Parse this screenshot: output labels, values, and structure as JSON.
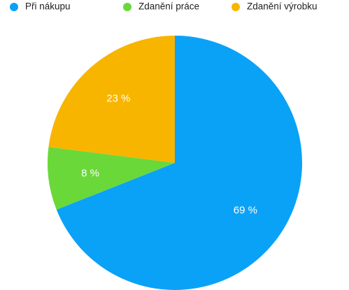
{
  "chart_data": {
    "type": "pie",
    "categories": [
      "Při nákupu",
      "Zdanění práce",
      "Zdanění výrobku"
    ],
    "values": [
      69,
      8,
      23
    ],
    "value_labels": [
      "69 %",
      "8 %",
      "23 %"
    ],
    "colors": [
      "#0aa2f7",
      "#6bd83a",
      "#f7b500"
    ]
  }
}
